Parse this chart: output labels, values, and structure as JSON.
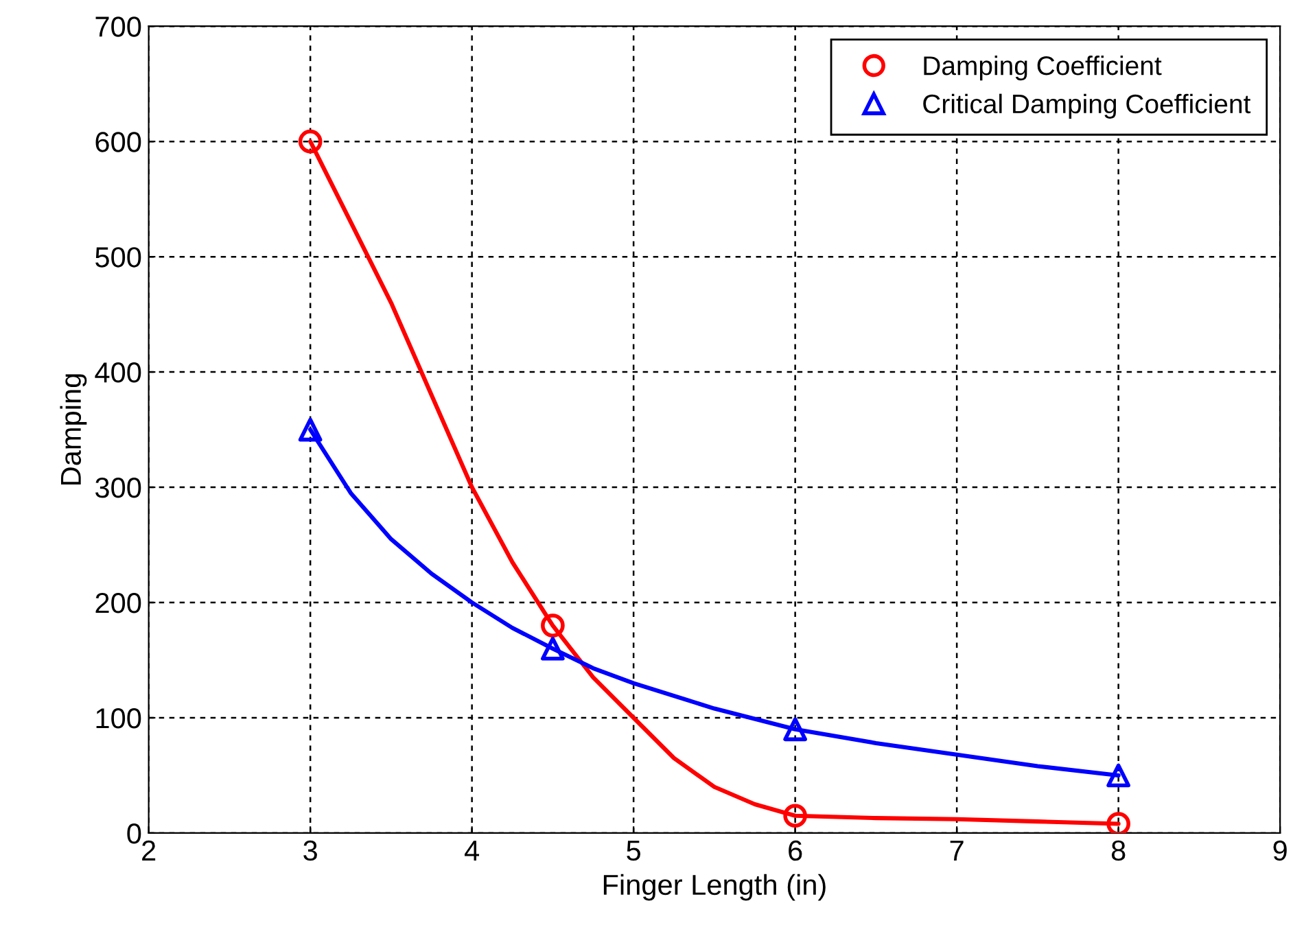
{
  "chart_data": {
    "type": "line",
    "xlabel": "Finger Length (in)",
    "ylabel": "Damping",
    "xlim": [
      2,
      9
    ],
    "xticks": [
      2,
      3,
      4,
      5,
      6,
      7,
      8,
      9
    ],
    "ylim": [
      0,
      700
    ],
    "yticks": [
      0,
      100,
      200,
      300,
      400,
      500,
      600,
      700
    ],
    "grid": true,
    "legend": "top right",
    "series": [
      {
        "color": "#ff0000",
        "line_style": "solid",
        "marker": "none",
        "x": [
          3,
          3.25,
          3.5,
          3.75,
          4,
          4.25,
          4.5,
          4.75,
          5,
          5.25,
          5.5,
          5.75,
          6,
          6.5,
          7,
          7.5,
          8
        ],
        "values": [
          600,
          530,
          460,
          380,
          300,
          235,
          180,
          135,
          100,
          65,
          40,
          25,
          15,
          13,
          12,
          10,
          8
        ]
      },
      {
        "color": "#0000ff",
        "line_style": "solid",
        "marker": "none",
        "x": [
          3,
          3.25,
          3.5,
          3.75,
          4,
          4.25,
          4.5,
          4.75,
          5,
          5.5,
          6,
          6.5,
          7,
          7.5,
          8
        ],
        "values": [
          350,
          295,
          255,
          225,
          200,
          178,
          160,
          143,
          130,
          108,
          90,
          78,
          68,
          58,
          50
        ]
      },
      {
        "type": "scatter",
        "name": "Damping Coefficient",
        "color": "#ff0000",
        "marker": "circle",
        "x": [
          3,
          4.5,
          6,
          8
        ],
        "values": [
          600,
          180,
          15,
          8
        ]
      },
      {
        "type": "scatter",
        "name": "Critical Damping Coefficient",
        "color": "#0000ff",
        "marker": "triangle",
        "x": [
          3,
          4.5,
          6,
          8
        ],
        "values": [
          350,
          160,
          90,
          50
        ]
      }
    ]
  }
}
